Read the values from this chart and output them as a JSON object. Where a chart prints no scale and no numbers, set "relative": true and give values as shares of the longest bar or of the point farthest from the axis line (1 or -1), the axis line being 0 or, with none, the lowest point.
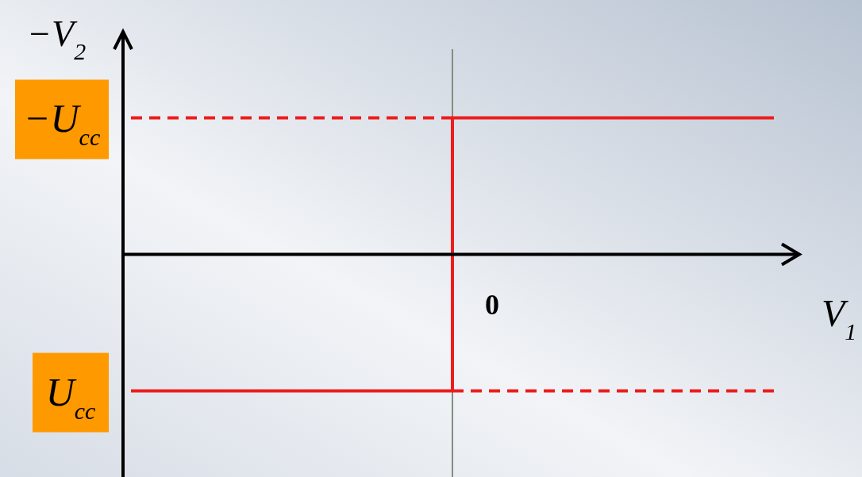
{
  "chart_data": {
    "type": "line",
    "relative": true,
    "xlabel": "V$_{1}$",
    "ylabel": "−V$_{2}$",
    "categories": [
      null,
      null,
      null
    ],
    "series": [
      {
        "type": "step",
        "color": "#ee1c1c",
        "values": [
          -1,
          1,
          1
        ]
      },
      {
        "color": "#ee1c1c",
        "line_style": "dashed",
        "values": [
          1,
          1,
          null
        ]
      },
      {
        "color": "#ee1c1c",
        "line_style": "dashed",
        "values": [
          null,
          -1,
          -1
        ]
      }
    ],
    "ref_lines": [
      {
        "axis": "x",
        "value": "0",
        "color": "#7f8f7f"
      }
    ],
    "annotations": [
      "−U$_{cc}$",
      "U$_{cc}$"
    ]
  }
}
